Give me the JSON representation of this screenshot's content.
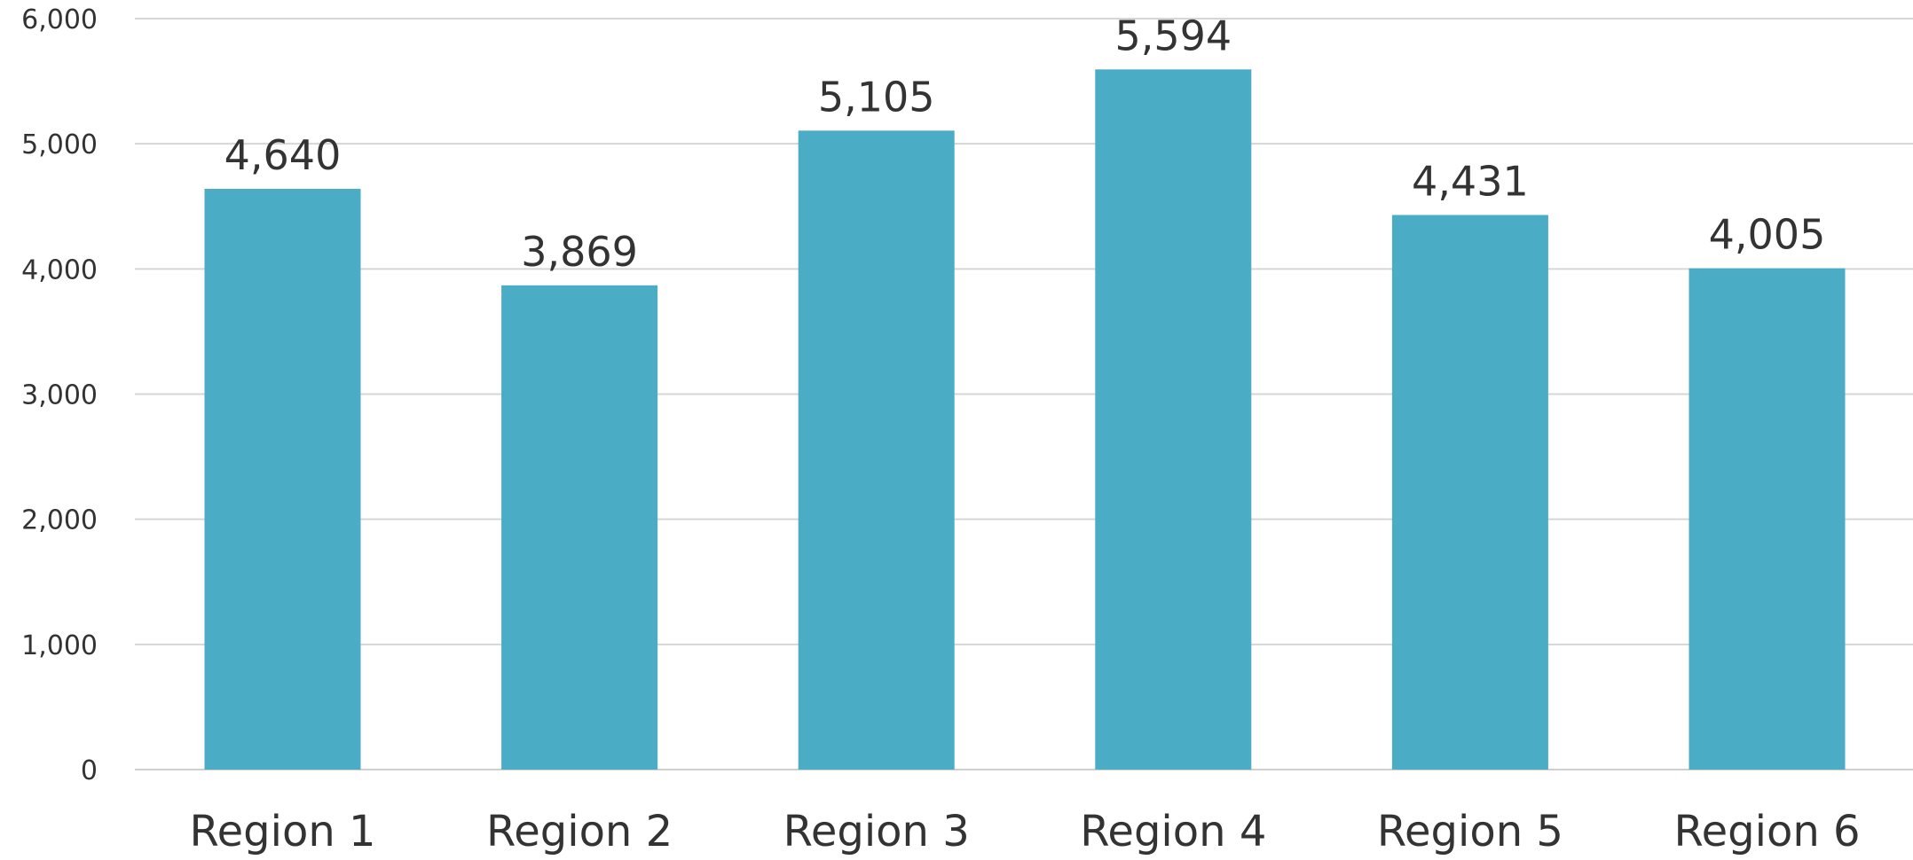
{
  "chart_data": {
    "type": "bar",
    "categories": [
      "Region 1",
      "Region 2",
      "Region 3",
      "Region 4",
      "Region 5",
      "Region 6"
    ],
    "values": [
      4640,
      3869,
      5105,
      5594,
      4431,
      4005
    ],
    "data_labels": [
      "4,640",
      "3,869",
      "5,105",
      "5,594",
      "4,431",
      "4,005"
    ],
    "ylim": [
      0,
      6000
    ],
    "yticks": [
      0,
      1000,
      2000,
      3000,
      4000,
      5000,
      6000
    ],
    "ytick_labels": [
      "0",
      "1,000",
      "2,000",
      "3,000",
      "4,000",
      "5,000",
      "6,000"
    ],
    "grid": true,
    "legend": "none",
    "colors": {
      "bar": "#4BACC6"
    }
  }
}
